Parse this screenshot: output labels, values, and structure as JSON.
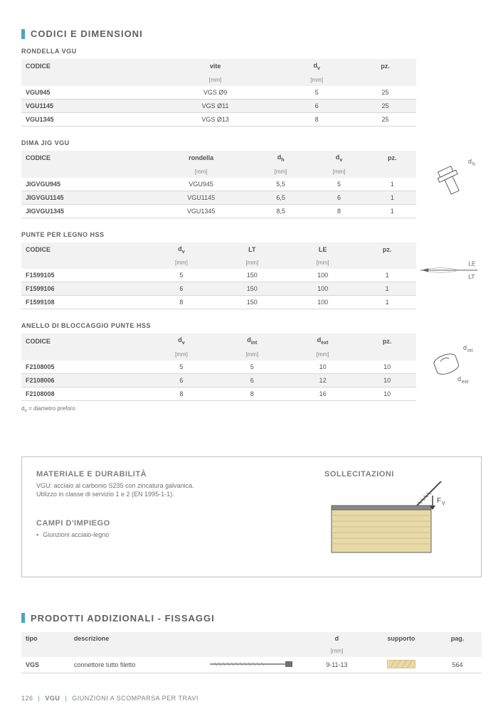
{
  "section1": {
    "title": "CODICI E DIMENSIONI",
    "marker_color": "#4aa6c4"
  },
  "table_rondella": {
    "title": "RONDELLA VGU",
    "headers": [
      "CODICE",
      "vite",
      "d_v",
      "pz."
    ],
    "units": [
      "",
      "[mm]",
      "[mm]",
      ""
    ],
    "rows": [
      [
        "VGU945",
        "VGS Ø9",
        "5",
        "25"
      ],
      [
        "VGU1145",
        "VGS Ø11",
        "6",
        "25"
      ],
      [
        "VGU1345",
        "VGS Ø13",
        "8",
        "25"
      ]
    ]
  },
  "table_dimajig": {
    "title": "DIMA JIG VGU",
    "headers": [
      "CODICE",
      "rondella",
      "d_h",
      "d_v",
      "pz."
    ],
    "units": [
      "",
      "[mm]",
      "[mm]",
      "[mm]",
      ""
    ],
    "rows": [
      [
        "JIGVGU945",
        "VGU945",
        "5,5",
        "5",
        "1"
      ],
      [
        "JIGVGU1145",
        "VGU1145",
        "6,5",
        "6",
        "1"
      ],
      [
        "JIGVGU1345",
        "VGU1345",
        "8,5",
        "8",
        "1"
      ]
    ],
    "side_label": "d_h"
  },
  "table_punte": {
    "title": "PUNTE PER LEGNO HSS",
    "headers": [
      "CODICE",
      "d_v",
      "LT",
      "LE",
      "pz."
    ],
    "units": [
      "",
      "[mm]",
      "[mm]",
      "[mm]",
      ""
    ],
    "rows": [
      [
        "F1599105",
        "5",
        "150",
        "100",
        "1"
      ],
      [
        "F1599106",
        "6",
        "150",
        "100",
        "1"
      ],
      [
        "F1599108",
        "8",
        "150",
        "100",
        "1"
      ]
    ],
    "side_labels": {
      "top": "LE",
      "bottom": "LT"
    }
  },
  "table_anello": {
    "title": "ANELLO DI BLOCCAGGIO PUNTE HSS",
    "headers": [
      "CODICE",
      "d_v",
      "d_int",
      "d_ext",
      "pz."
    ],
    "units": [
      "",
      "[mm]",
      "[mm]",
      "[mm]",
      ""
    ],
    "rows": [
      [
        "F2108005",
        "5",
        "5",
        "10",
        "10"
      ],
      [
        "F2108006",
        "6",
        "6",
        "12",
        "10"
      ],
      [
        "F2108008",
        "8",
        "8",
        "16",
        "10"
      ]
    ],
    "side_labels": {
      "top": "d_int",
      "bottom": "d_ext"
    }
  },
  "footnote": "d_v = diametro preforo",
  "info_box": {
    "material_heading": "MATERIALE E DURABILITÀ",
    "material_text": "VGU: acciaio al carbonio S235 con zincatura galvanica.\nUtilizzo in classe di servizio 1 e 2 (EN 1995-1-1).",
    "campi_heading": "CAMPI D'IMPIEGO",
    "campi_bullet": "Giunzioni acciaio-legno",
    "sollec_heading": "SOLLECITAZIONI",
    "force_label": "F_V"
  },
  "section2": {
    "title": "PRODOTTI ADDIZIONALI - FISSAGGI"
  },
  "table_prodotti": {
    "headers": [
      "tipo",
      "descrizione",
      "",
      "d",
      "supporto",
      "pag."
    ],
    "units": [
      "",
      "",
      "",
      "[mm]",
      "",
      ""
    ],
    "rows": [
      [
        "VGS",
        "connettore tutto filetto",
        "",
        "9-11-13",
        "",
        "564"
      ]
    ]
  },
  "footer": {
    "page_num": "126",
    "code": "VGU",
    "desc": "GIUNZIONI A SCOMPARSA PER TRAVI"
  },
  "colors": {
    "accent": "#4aa6c4",
    "header_bg": "#f2f2f2",
    "border": "#d8d8d8",
    "wood": "#e8d9a8",
    "wood_line": "#c9b87a"
  }
}
